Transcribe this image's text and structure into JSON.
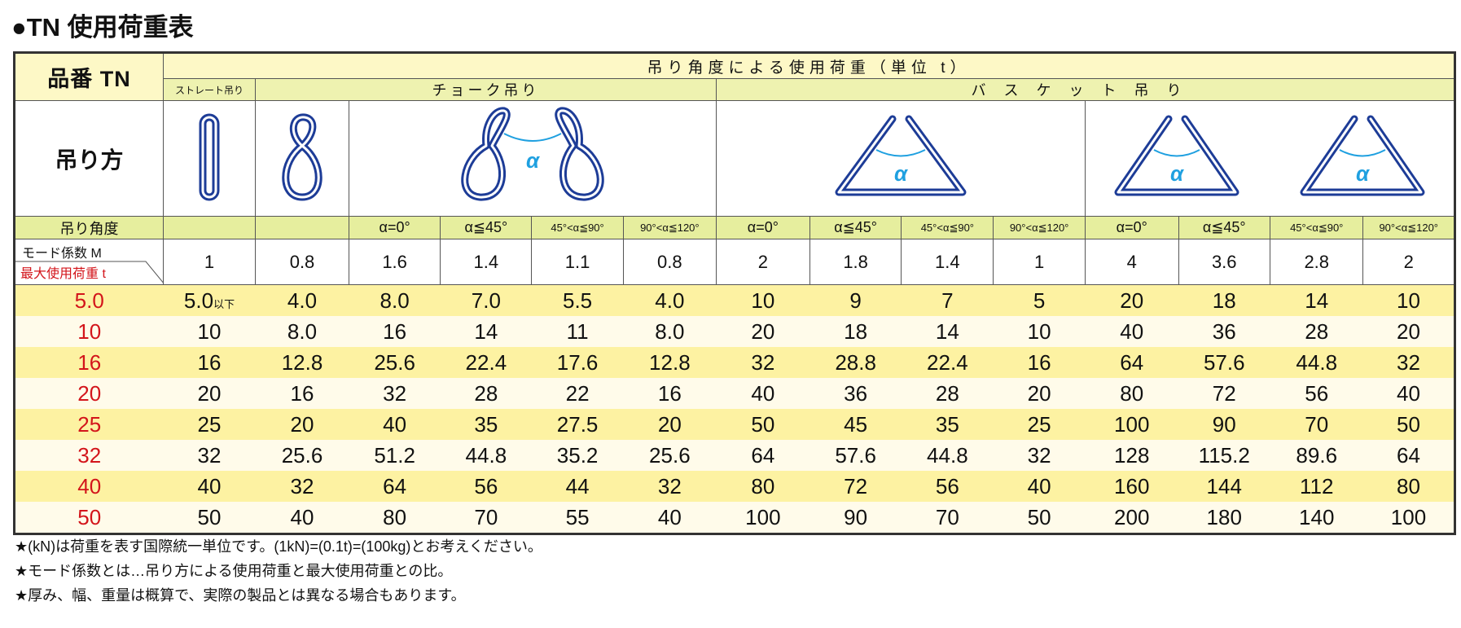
{
  "title": "●TN 使用荷重表",
  "table": {
    "corner_label": "品番 TN",
    "header": "吊り角度による使用荷重（単位 t）",
    "groups": [
      "ストレート吊り",
      "チョーク吊り",
      "バスケット吊り"
    ],
    "method_label": "吊り方",
    "icon_label": "α",
    "angle_label": "吊り角度",
    "angles": [
      "α=0°",
      "α≦45°",
      "45°<α≦90°",
      "90°<α≦120°",
      "α=0°",
      "α≦45°",
      "45°<α≦90°",
      "90°<α≦120°",
      "α=0°",
      "α≦45°",
      "45°<α≦90°",
      "90°<α≦120°"
    ],
    "mode_label": "モード係数 M",
    "load_label": "最大使用荷重 t",
    "mode_factors": [
      1,
      0.8,
      1.6,
      1.4,
      1.1,
      0.8,
      2,
      1.8,
      1.4,
      1,
      4,
      3.6,
      2.8,
      2
    ],
    "rows": [
      {
        "model": "5.0",
        "suffix": "以下",
        "loads": [
          "5.0",
          "4.0",
          "8.0",
          "7.0",
          "5.5",
          "4.0",
          "10",
          "9",
          "7",
          "5",
          "20",
          "18",
          "14",
          "10"
        ]
      },
      {
        "model": "10",
        "loads": [
          "10",
          "8.0",
          "16",
          "14",
          "11",
          "8.0",
          "20",
          "18",
          "14",
          "10",
          "40",
          "36",
          "28",
          "20"
        ]
      },
      {
        "model": "16",
        "loads": [
          "16",
          "12.8",
          "25.6",
          "22.4",
          "17.6",
          "12.8",
          "32",
          "28.8",
          "22.4",
          "16",
          "64",
          "57.6",
          "44.8",
          "32"
        ]
      },
      {
        "model": "20",
        "loads": [
          "20",
          "16",
          "32",
          "28",
          "22",
          "16",
          "40",
          "36",
          "28",
          "20",
          "80",
          "72",
          "56",
          "40"
        ]
      },
      {
        "model": "25",
        "loads": [
          "25",
          "20",
          "40",
          "35",
          "27.5",
          "20",
          "50",
          "45",
          "35",
          "25",
          "100",
          "90",
          "70",
          "50"
        ]
      },
      {
        "model": "32",
        "loads": [
          "32",
          "25.6",
          "51.2",
          "44.8",
          "35.2",
          "25.6",
          "64",
          "57.6",
          "44.8",
          "32",
          "128",
          "115.2",
          "89.6",
          "64"
        ]
      },
      {
        "model": "40",
        "loads": [
          "40",
          "32",
          "64",
          "56",
          "44",
          "32",
          "80",
          "72",
          "56",
          "40",
          "160",
          "144",
          "112",
          "80"
        ]
      },
      {
        "model": "50",
        "loads": [
          "50",
          "40",
          "80",
          "70",
          "55",
          "40",
          "100",
          "90",
          "70",
          "50",
          "200",
          "180",
          "140",
          "100"
        ]
      }
    ]
  },
  "notes": [
    "★(kN)は荷重を表す国際統一単位です。(1kN)=(0.1t)=(100kg)とお考えください。",
    "★モード係数とは…吊り方による使用荷重と最大使用荷重との比。",
    "★厚み、幅、重量は概算で、実際の製品とは異なる場合もあります。"
  ]
}
